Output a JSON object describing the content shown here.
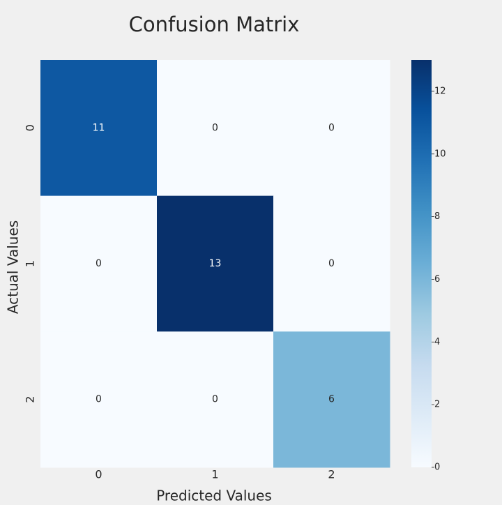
{
  "chart_data": {
    "type": "heatmap",
    "title": "Confusion Matrix",
    "x_label": "Predicted Values",
    "y_label": "Actual Values",
    "x": [
      "0",
      "1",
      "2"
    ],
    "y": [
      "0",
      "1",
      "2"
    ],
    "values": [
      [
        11,
        0,
        0
      ],
      [
        0,
        13,
        0
      ],
      [
        0,
        0,
        6
      ]
    ],
    "clim": [
      0,
      13
    ],
    "cticks": [
      0,
      2,
      4,
      6,
      8,
      10,
      12
    ],
    "colormap": [
      "#f7fbff",
      "#deebf7",
      "#c6dbef",
      "#9ecae1",
      "#6baed6",
      "#4292c6",
      "#2171b5",
      "#08519c",
      "#08306b"
    ]
  }
}
